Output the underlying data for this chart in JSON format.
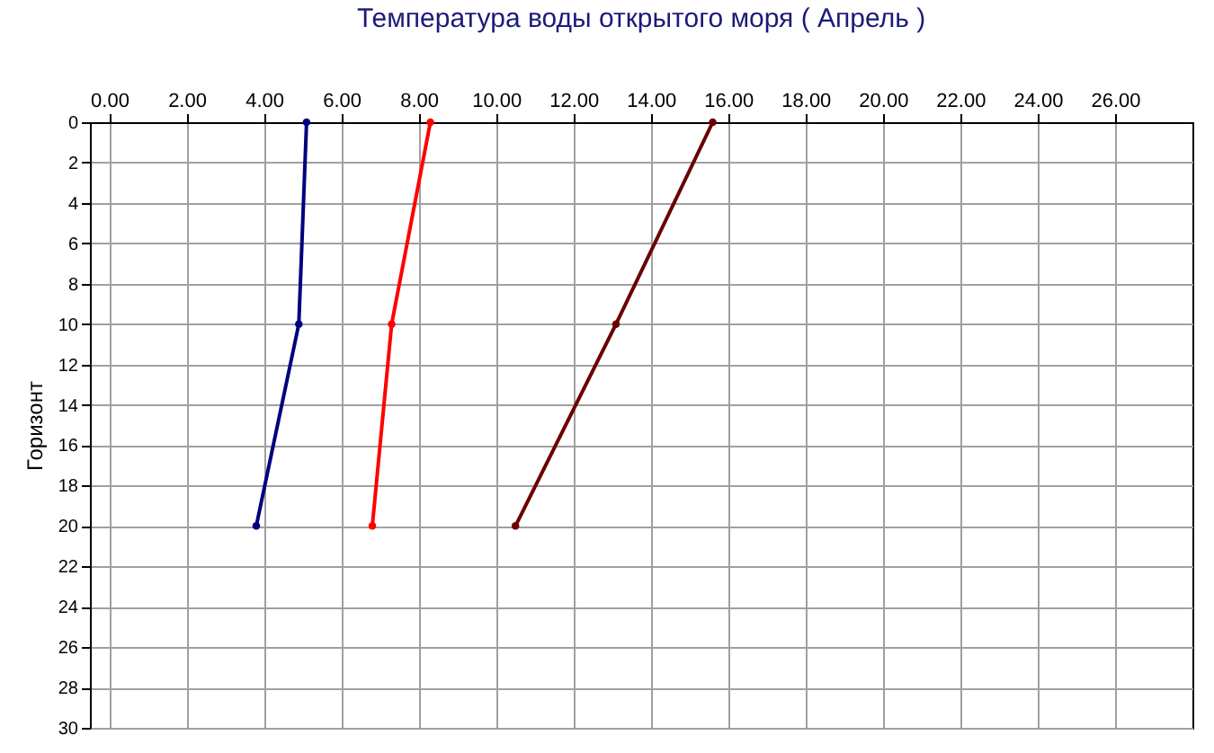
{
  "chart_data": {
    "type": "line",
    "title": "Температура воды открытого моря     ( Апрель )",
    "ylabel": "Горизонт",
    "xlim": [
      -0.5,
      28
    ],
    "xticks": [
      {
        "value": 0,
        "label": "0.00"
      },
      {
        "value": 2,
        "label": "2.00"
      },
      {
        "value": 4,
        "label": "4.00"
      },
      {
        "value": 6,
        "label": "6.00"
      },
      {
        "value": 8,
        "label": "8.00"
      },
      {
        "value": 10,
        "label": "10.00"
      },
      {
        "value": 12,
        "label": "12.00"
      },
      {
        "value": 14,
        "label": "14.00"
      },
      {
        "value": 16,
        "label": "16.00"
      },
      {
        "value": 18,
        "label": "18.00"
      },
      {
        "value": 20,
        "label": "20.00"
      },
      {
        "value": 22,
        "label": "22.00"
      },
      {
        "value": 24,
        "label": "24.00"
      },
      {
        "value": 26,
        "label": "26.00"
      }
    ],
    "ylim": [
      30,
      0
    ],
    "yticks": [
      0,
      2,
      4,
      6,
      8,
      10,
      12,
      14,
      16,
      18,
      20,
      22,
      24,
      26,
      28,
      30
    ],
    "grid": true,
    "marker": "circle",
    "line_style": "solid",
    "series": [
      {
        "color": "#000080",
        "x": [
          5.1,
          4.9,
          3.8
        ],
        "values": [
          0,
          10,
          20
        ]
      },
      {
        "color": "#ff0000",
        "x": [
          8.3,
          7.3,
          6.8
        ],
        "values": [
          0,
          10,
          20
        ]
      },
      {
        "color": "#6b0000",
        "x": [
          15.6,
          13.1,
          10.5
        ],
        "values": [
          0,
          10,
          20
        ]
      }
    ]
  }
}
